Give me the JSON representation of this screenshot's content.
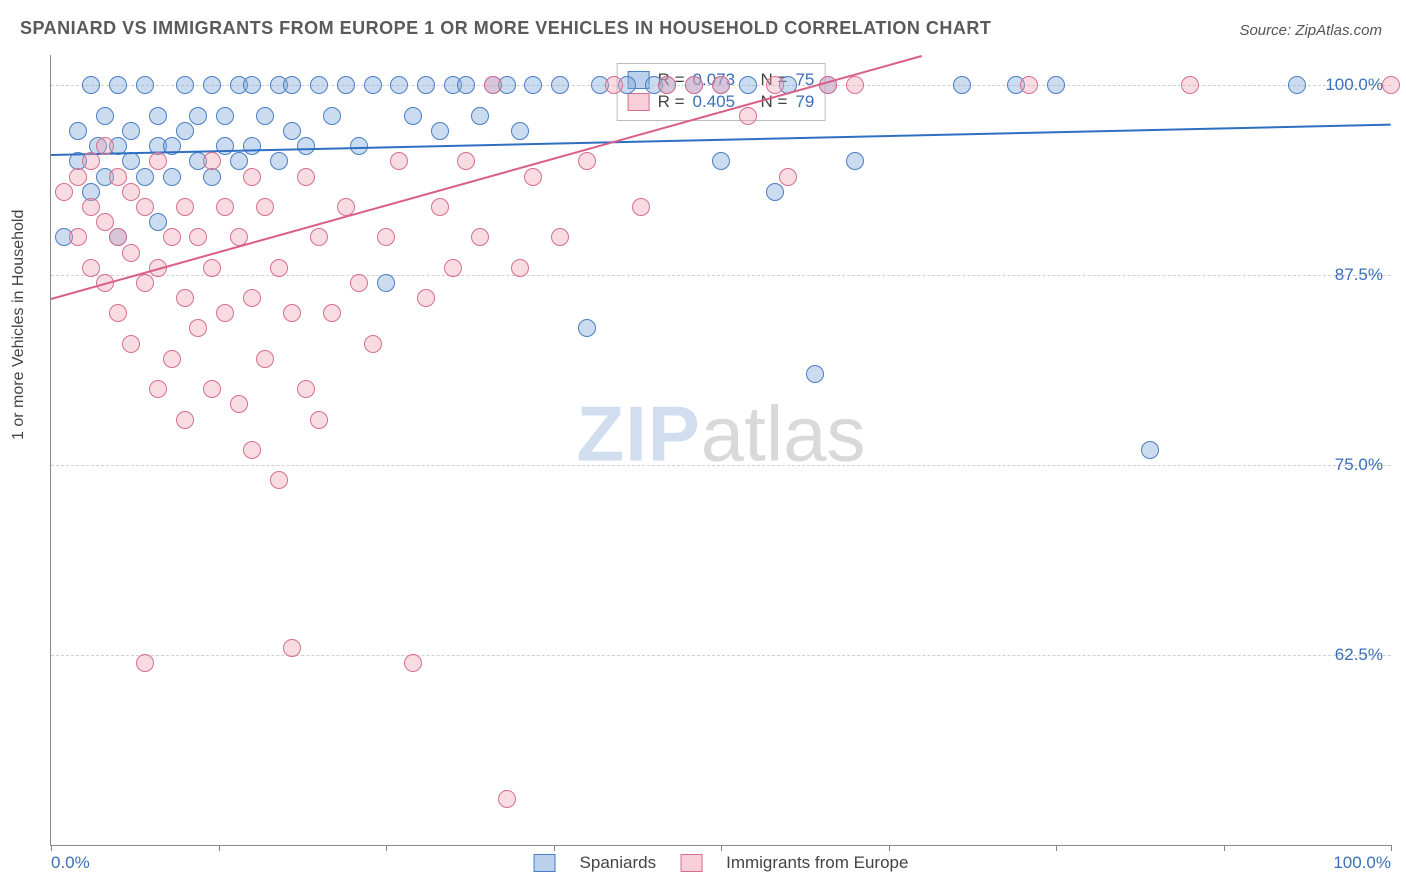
{
  "title": "SPANIARD VS IMMIGRANTS FROM EUROPE 1 OR MORE VEHICLES IN HOUSEHOLD CORRELATION CHART",
  "source": "Source: ZipAtlas.com",
  "ylabel": "1 or more Vehicles in Household",
  "watermark_zip": "ZIP",
  "watermark_atlas": "atlas",
  "chart": {
    "type": "scatter",
    "xlim": [
      0,
      100
    ],
    "ylim": [
      50,
      102
    ],
    "x_ticks_at": [
      0,
      12.5,
      25,
      37.5,
      50,
      62.5,
      75,
      87.5,
      100
    ],
    "x_tick_labels": {
      "0": "0.0%",
      "100": "100.0%"
    },
    "y_grid": [
      62.5,
      75,
      87.5,
      100
    ],
    "y_tick_labels": {
      "62.5": "62.5%",
      "75": "75.0%",
      "87.5": "87.5%",
      "100": "100.0%"
    },
    "background_color": "#ffffff",
    "grid_color": "#cfcfcf",
    "axis_color": "#888888",
    "tick_label_color": "#3b6fb6",
    "point_radius": 9,
    "series": [
      {
        "key": "spaniards",
        "label": "Spaniards",
        "color_fill": "rgba(130,170,220,0.42)",
        "color_stroke": "#4a7fc2",
        "r": "0.073",
        "n": "75",
        "trend": {
          "x1": 0,
          "y1": 95.5,
          "x2": 100,
          "y2": 97.5,
          "color": "#2f6fc2",
          "width": 2
        },
        "points": [
          [
            1,
            90
          ],
          [
            2,
            95
          ],
          [
            2,
            97
          ],
          [
            3,
            93
          ],
          [
            3,
            100
          ],
          [
            3.5,
            96
          ],
          [
            4,
            94
          ],
          [
            4,
            98
          ],
          [
            5,
            90
          ],
          [
            5,
            96
          ],
          [
            5,
            100
          ],
          [
            6,
            95
          ],
          [
            6,
            97
          ],
          [
            7,
            94
          ],
          [
            7,
            100
          ],
          [
            8,
            91
          ],
          [
            8,
            96
          ],
          [
            8,
            98
          ],
          [
            9,
            94
          ],
          [
            9,
            96
          ],
          [
            10,
            97
          ],
          [
            10,
            100
          ],
          [
            11,
            95
          ],
          [
            11,
            98
          ],
          [
            12,
            94
          ],
          [
            12,
            100
          ],
          [
            13,
            96
          ],
          [
            13,
            98
          ],
          [
            14,
            95
          ],
          [
            14,
            100
          ],
          [
            15,
            96
          ],
          [
            15,
            100
          ],
          [
            16,
            98
          ],
          [
            17,
            95
          ],
          [
            17,
            100
          ],
          [
            18,
            97
          ],
          [
            18,
            100
          ],
          [
            19,
            96
          ],
          [
            20,
            100
          ],
          [
            21,
            98
          ],
          [
            22,
            100
          ],
          [
            23,
            96
          ],
          [
            24,
            100
          ],
          [
            25,
            87
          ],
          [
            26,
            100
          ],
          [
            27,
            98
          ],
          [
            28,
            100
          ],
          [
            29,
            97
          ],
          [
            30,
            100
          ],
          [
            31,
            100
          ],
          [
            32,
            98
          ],
          [
            33,
            100
          ],
          [
            34,
            100
          ],
          [
            35,
            97
          ],
          [
            36,
            100
          ],
          [
            38,
            100
          ],
          [
            40,
            84
          ],
          [
            41,
            100
          ],
          [
            43,
            100
          ],
          [
            45,
            100
          ],
          [
            46,
            100
          ],
          [
            48,
            100
          ],
          [
            50,
            100
          ],
          [
            50,
            95
          ],
          [
            52,
            100
          ],
          [
            54,
            93
          ],
          [
            55,
            100
          ],
          [
            57,
            81
          ],
          [
            58,
            100
          ],
          [
            60,
            95
          ],
          [
            68,
            100
          ],
          [
            72,
            100
          ],
          [
            75,
            100
          ],
          [
            82,
            76
          ],
          [
            93,
            100
          ]
        ]
      },
      {
        "key": "immigrants_europe",
        "label": "Immigrants from Europe",
        "color_fill": "rgba(240,160,180,0.38)",
        "color_stroke": "#d66f90",
        "r": "0.405",
        "n": "79",
        "trend": {
          "x1": 0,
          "y1": 86,
          "x2": 65,
          "y2": 102,
          "color": "#d95f87",
          "width": 2
        },
        "points": [
          [
            1,
            93
          ],
          [
            2,
            90
          ],
          [
            2,
            94
          ],
          [
            3,
            88
          ],
          [
            3,
            92
          ],
          [
            3,
            95
          ],
          [
            4,
            87
          ],
          [
            4,
            91
          ],
          [
            4,
            96
          ],
          [
            5,
            85
          ],
          [
            5,
            90
          ],
          [
            5,
            94
          ],
          [
            6,
            83
          ],
          [
            6,
            89
          ],
          [
            6,
            93
          ],
          [
            7,
            62
          ],
          [
            7,
            87
          ],
          [
            7,
            92
          ],
          [
            8,
            80
          ],
          [
            8,
            88
          ],
          [
            8,
            95
          ],
          [
            9,
            82
          ],
          [
            9,
            90
          ],
          [
            10,
            78
          ],
          [
            10,
            86
          ],
          [
            10,
            92
          ],
          [
            11,
            84
          ],
          [
            11,
            90
          ],
          [
            12,
            80
          ],
          [
            12,
            88
          ],
          [
            12,
            95
          ],
          [
            13,
            85
          ],
          [
            13,
            92
          ],
          [
            14,
            79
          ],
          [
            14,
            90
          ],
          [
            15,
            76
          ],
          [
            15,
            86
          ],
          [
            15,
            94
          ],
          [
            16,
            82
          ],
          [
            16,
            92
          ],
          [
            17,
            74
          ],
          [
            17,
            88
          ],
          [
            18,
            85
          ],
          [
            18,
            63
          ],
          [
            19,
            80
          ],
          [
            19,
            94
          ],
          [
            20,
            78
          ],
          [
            20,
            90
          ],
          [
            21,
            85
          ],
          [
            22,
            92
          ],
          [
            23,
            87
          ],
          [
            24,
            83
          ],
          [
            25,
            90
          ],
          [
            26,
            95
          ],
          [
            27,
            62
          ],
          [
            28,
            86
          ],
          [
            29,
            92
          ],
          [
            30,
            88
          ],
          [
            31,
            95
          ],
          [
            32,
            90
          ],
          [
            33,
            100
          ],
          [
            34,
            53
          ],
          [
            35,
            88
          ],
          [
            36,
            94
          ],
          [
            38,
            90
          ],
          [
            40,
            95
          ],
          [
            42,
            100
          ],
          [
            44,
            92
          ],
          [
            46,
            100
          ],
          [
            48,
            100
          ],
          [
            50,
            100
          ],
          [
            52,
            98
          ],
          [
            54,
            100
          ],
          [
            55,
            94
          ],
          [
            58,
            100
          ],
          [
            60,
            100
          ],
          [
            73,
            100
          ],
          [
            85,
            100
          ],
          [
            100,
            100
          ]
        ]
      }
    ],
    "legend": {
      "s1_label": "Spaniards",
      "s2_label": "Immigrants from Europe"
    },
    "statbox": {
      "r_label": "R =",
      "n_label": "N ="
    }
  }
}
